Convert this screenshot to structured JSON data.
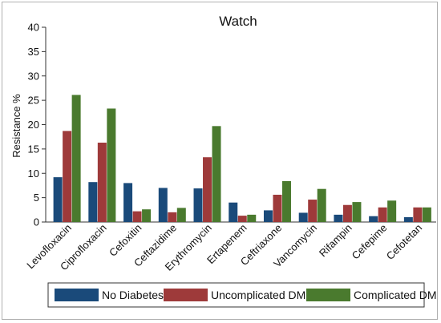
{
  "chart_data": {
    "type": "bar",
    "title": "Watch",
    "xlabel": "",
    "ylabel": "Resistance %",
    "ylim": [
      0,
      40
    ],
    "yticks": [
      0,
      5,
      10,
      15,
      20,
      25,
      30,
      35,
      40
    ],
    "grid": false,
    "legend_position": "bottom",
    "categories": [
      "Levofloxacin",
      "Ciprofloxacin",
      "Cefoxitin",
      "Ceftazidime",
      "Erythromycin",
      "Ertapenem",
      "Ceftriaxone",
      "Vancomycin",
      "Rifampin",
      "Cefepime",
      "Cefotetan"
    ],
    "series": [
      {
        "name": "No Diabetes",
        "color": "#1a4a7a",
        "values": [
          9.2,
          8.2,
          8.0,
          7.0,
          6.9,
          4.0,
          2.4,
          1.9,
          1.5,
          1.2,
          1.0
        ]
      },
      {
        "name": "Uncomplicated DM",
        "color": "#9e3a3a",
        "values": [
          18.7,
          16.3,
          2.2,
          2.0,
          13.3,
          1.3,
          5.6,
          4.6,
          3.5,
          3.0,
          3.0
        ]
      },
      {
        "name": "Complicated DM",
        "color": "#4a7a2e",
        "values": [
          26.1,
          23.3,
          2.6,
          2.9,
          19.7,
          1.5,
          8.4,
          6.8,
          4.1,
          4.4,
          3.0
        ]
      }
    ]
  }
}
